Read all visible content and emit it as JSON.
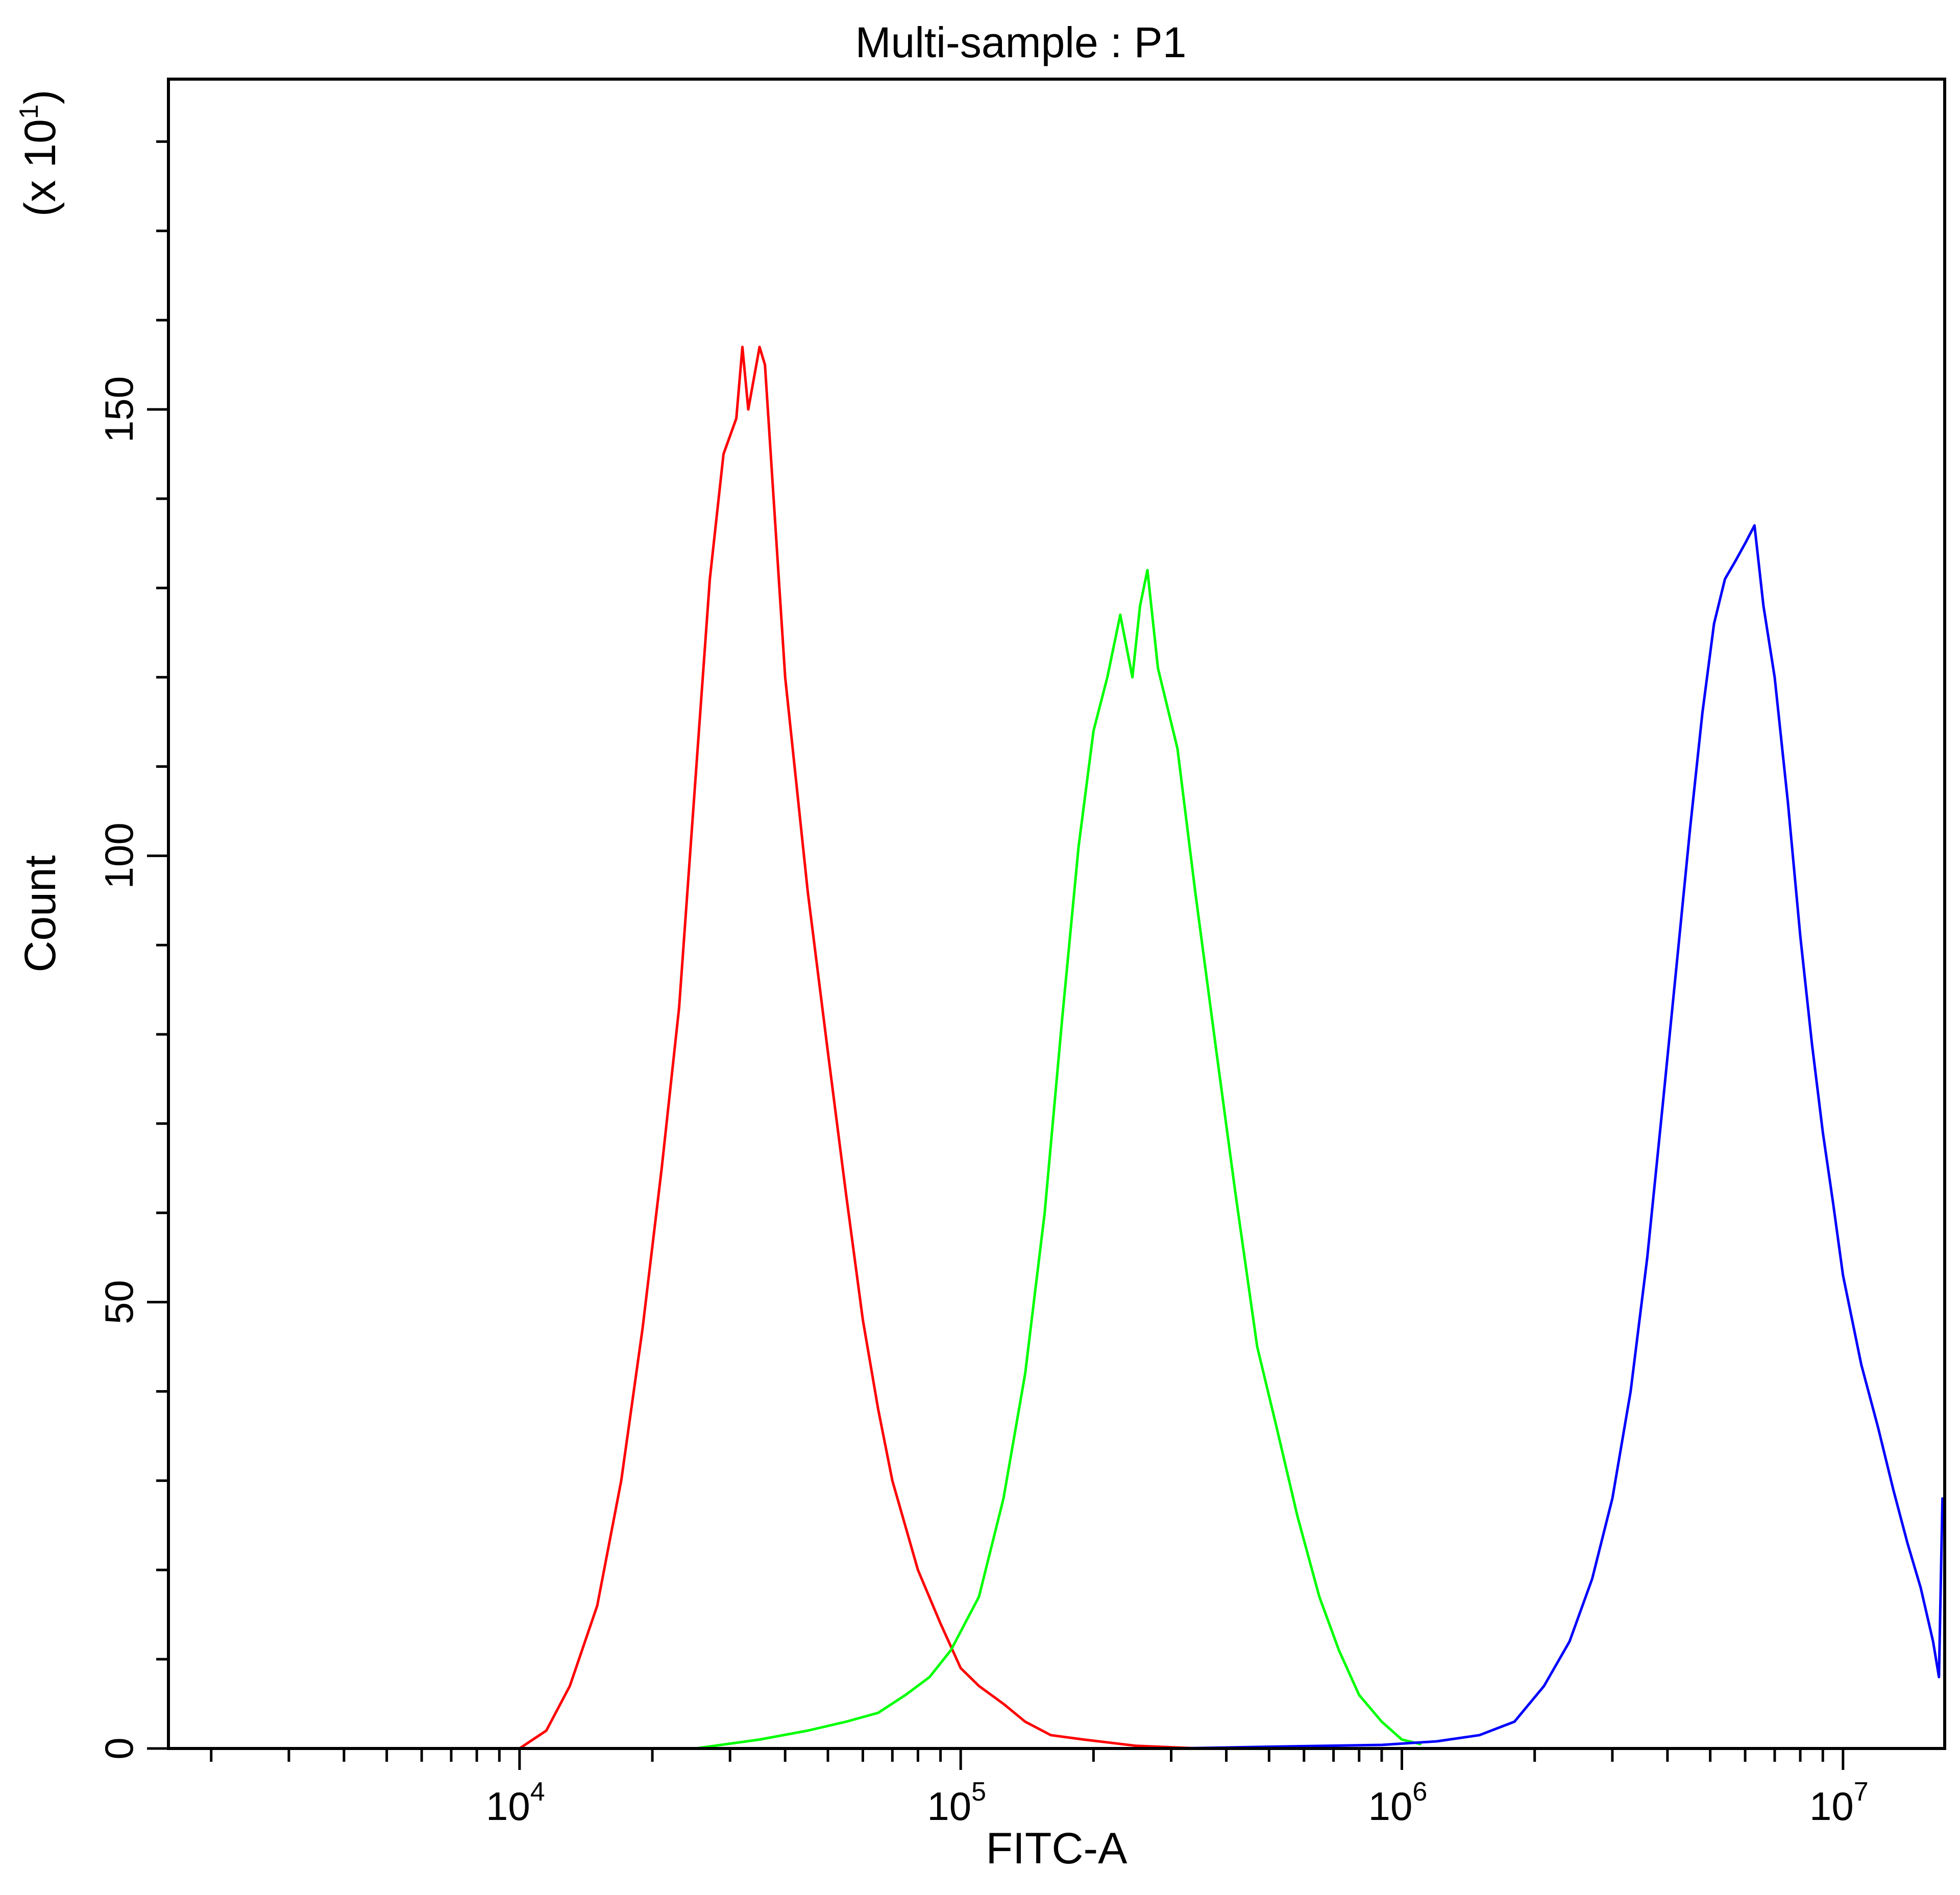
{
  "chart_data": {
    "type": "line",
    "title": "Multi-sample : P1",
    "xlabel": "FITC-A",
    "ylabel": "Count",
    "y_multiplier": "(x 10",
    "y_multiplier_exp": "1",
    "y_multiplier_close": ")",
    "x_scale": "log",
    "xlim": [
      1600,
      17000000
    ],
    "ylim": [
      0,
      187
    ],
    "grid": false,
    "legend": "none",
    "x_ticks": [
      {
        "base": "10",
        "exp": "4",
        "value": 10000
      },
      {
        "base": "10",
        "exp": "5",
        "value": 100000
      },
      {
        "base": "10",
        "exp": "6",
        "value": 1000000
      },
      {
        "base": "10",
        "exp": "7",
        "value": 10000000
      }
    ],
    "y_ticks": [
      {
        "label": "0",
        "value": 0
      },
      {
        "label": "50",
        "value": 50
      },
      {
        "label": "100",
        "value": 100
      },
      {
        "label": "150",
        "value": 150
      }
    ],
    "series": [
      {
        "color": "#ff0000",
        "points": [
          [
            10000,
            0
          ],
          [
            11500,
            2
          ],
          [
            13000,
            7
          ],
          [
            15000,
            16
          ],
          [
            17000,
            30
          ],
          [
            19000,
            47
          ],
          [
            21000,
            65
          ],
          [
            23000,
            83
          ],
          [
            25000,
            108
          ],
          [
            27000,
            131
          ],
          [
            29000,
            145
          ],
          [
            31000,
            149
          ],
          [
            32000,
            157
          ],
          [
            33000,
            150
          ],
          [
            35000,
            157
          ],
          [
            36000,
            155
          ],
          [
            40000,
            120
          ],
          [
            45000,
            96
          ],
          [
            50000,
            78
          ],
          [
            55000,
            62
          ],
          [
            60000,
            48
          ],
          [
            65000,
            38
          ],
          [
            70000,
            30
          ],
          [
            80000,
            20
          ],
          [
            90000,
            14
          ],
          [
            100000,
            9
          ],
          [
            110000,
            7
          ],
          [
            125000,
            5
          ],
          [
            140000,
            3
          ],
          [
            160000,
            1.5
          ],
          [
            190000,
            1
          ],
          [
            250000,
            0.3
          ],
          [
            350000,
            0
          ]
        ]
      },
      {
        "color": "#00ff00",
        "points": [
          [
            25000,
            0
          ],
          [
            35000,
            1
          ],
          [
            45000,
            2
          ],
          [
            55000,
            3
          ],
          [
            65000,
            4
          ],
          [
            75000,
            6
          ],
          [
            85000,
            8
          ],
          [
            95000,
            11
          ],
          [
            110000,
            17
          ],
          [
            125000,
            28
          ],
          [
            140000,
            42
          ],
          [
            155000,
            60
          ],
          [
            170000,
            82
          ],
          [
            185000,
            101
          ],
          [
            200000,
            114
          ],
          [
            215000,
            120
          ],
          [
            230000,
            127
          ],
          [
            245000,
            120
          ],
          [
            255000,
            128
          ],
          [
            265000,
            132
          ],
          [
            280000,
            121
          ],
          [
            310000,
            112
          ],
          [
            340000,
            96
          ],
          [
            380000,
            78
          ],
          [
            420000,
            62
          ],
          [
            470000,
            45
          ],
          [
            520000,
            36
          ],
          [
            580000,
            26
          ],
          [
            650000,
            17
          ],
          [
            720000,
            11
          ],
          [
            800000,
            6
          ],
          [
            900000,
            3
          ],
          [
            1000000,
            1
          ],
          [
            1100000,
            0.5
          ]
        ]
      },
      {
        "color": "#0000ff",
        "points": [
          [
            300000,
            0
          ],
          [
            500000,
            0.2
          ],
          [
            900000,
            0.4
          ],
          [
            1200000,
            0.8
          ],
          [
            1500000,
            1.5
          ],
          [
            1800000,
            3
          ],
          [
            2100000,
            7
          ],
          [
            2400000,
            12
          ],
          [
            2700000,
            19
          ],
          [
            3000000,
            28
          ],
          [
            3300000,
            40
          ],
          [
            3600000,
            55
          ],
          [
            3900000,
            72
          ],
          [
            4200000,
            88
          ],
          [
            4500000,
            103
          ],
          [
            4800000,
            116
          ],
          [
            5100000,
            126
          ],
          [
            5400000,
            131
          ],
          [
            5700000,
            133
          ],
          [
            6000000,
            135
          ],
          [
            6300000,
            137
          ],
          [
            6600000,
            128
          ],
          [
            7000000,
            120
          ],
          [
            7500000,
            106
          ],
          [
            8000000,
            91
          ],
          [
            8500000,
            79
          ],
          [
            9000000,
            69
          ],
          [
            9500000,
            61
          ],
          [
            10000000,
            53
          ],
          [
            11000000,
            43
          ],
          [
            12000000,
            36
          ],
          [
            13000000,
            29
          ],
          [
            14000000,
            23
          ],
          [
            15000000,
            18
          ],
          [
            16000000,
            12
          ],
          [
            16500000,
            8
          ],
          [
            16800000,
            28
          ]
        ]
      }
    ]
  }
}
